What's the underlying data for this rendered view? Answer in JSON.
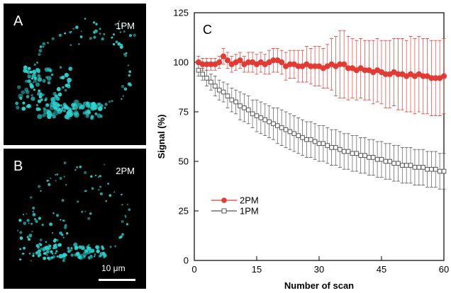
{
  "panels": {
    "a": {
      "letter": "A",
      "tag": "1PM"
    },
    "b": {
      "letter": "B",
      "tag": "2PM",
      "scale_bar_label": "10 μm"
    }
  },
  "colors": {
    "dot": "#2fd3d0",
    "series_2pm": "#e23b35",
    "series_1pm": "#555555"
  },
  "chart_data": {
    "type": "line",
    "panel_label": "C",
    "xlabel": "Number of scan",
    "ylabel": "Signal (%)",
    "xlim": [
      0,
      60
    ],
    "ylim": [
      0,
      125
    ],
    "x_ticks": [
      0,
      15,
      30,
      45,
      60
    ],
    "y_ticks": [
      0,
      25,
      50,
      75,
      100,
      125
    ],
    "legend_position": "lower-left",
    "series": [
      {
        "name": "2PM",
        "marker": "filled-circle",
        "x": [
          1,
          2,
          3,
          4,
          5,
          6,
          7,
          8,
          9,
          10,
          11,
          12,
          13,
          14,
          15,
          16,
          17,
          18,
          19,
          20,
          21,
          22,
          23,
          24,
          25,
          26,
          27,
          28,
          29,
          30,
          31,
          32,
          33,
          34,
          35,
          36,
          37,
          38,
          39,
          40,
          41,
          42,
          43,
          44,
          45,
          46,
          47,
          48,
          49,
          50,
          51,
          52,
          53,
          54,
          55,
          56,
          57,
          58,
          59,
          60
        ],
        "y": [
          100,
          99,
          99,
          99,
          99,
          100,
          103,
          101,
          99,
          100,
          101,
          99,
          100,
          100,
          99,
          100,
          99,
          100,
          101,
          101,
          100,
          98,
          99,
          99,
          98,
          98,
          99,
          98,
          98,
          98,
          97,
          98,
          99,
          98,
          99,
          99,
          97,
          97,
          96,
          97,
          96,
          96,
          95,
          96,
          95,
          94,
          94,
          95,
          94,
          94,
          93,
          94,
          93,
          94,
          93,
          93,
          92,
          92,
          92,
          93
        ],
        "error": [
          3,
          3,
          3,
          3,
          3,
          3,
          4,
          4,
          4,
          4,
          4,
          4,
          5,
          5,
          5,
          5,
          5,
          6,
          6,
          6,
          6,
          7,
          7,
          7,
          8,
          8,
          9,
          9,
          10,
          10,
          10,
          11,
          13,
          15,
          17,
          17,
          16,
          15,
          15,
          15,
          15,
          15,
          16,
          16,
          16,
          17,
          17,
          17,
          18,
          18,
          18,
          19,
          19,
          19,
          19,
          19,
          19,
          19,
          19,
          19
        ]
      },
      {
        "name": "1PM",
        "marker": "open-square",
        "x": [
          1,
          2,
          3,
          4,
          5,
          6,
          7,
          8,
          9,
          10,
          11,
          12,
          13,
          14,
          15,
          16,
          17,
          18,
          19,
          20,
          21,
          22,
          23,
          24,
          25,
          26,
          27,
          28,
          29,
          30,
          31,
          32,
          33,
          34,
          35,
          36,
          37,
          38,
          39,
          40,
          41,
          42,
          43,
          44,
          45,
          46,
          47,
          48,
          49,
          50,
          51,
          52,
          53,
          54,
          55,
          56,
          57,
          58,
          59,
          60
        ],
        "y": [
          96,
          94,
          92,
          90,
          88,
          86,
          85,
          83,
          81,
          80,
          78,
          77,
          76,
          74,
          73,
          72,
          71,
          70,
          69,
          68,
          67,
          66,
          65,
          64,
          63,
          62,
          61,
          61,
          60,
          59,
          59,
          58,
          57,
          57,
          56,
          55,
          55,
          54,
          54,
          53,
          53,
          52,
          52,
          51,
          51,
          50,
          50,
          49,
          49,
          48,
          48,
          48,
          47,
          47,
          47,
          46,
          46,
          46,
          45,
          45
        ],
        "error": [
          3,
          3,
          4,
          4,
          5,
          5,
          5,
          6,
          6,
          6,
          7,
          7,
          7,
          7,
          8,
          8,
          8,
          8,
          8,
          9,
          9,
          9,
          9,
          9,
          9,
          9,
          9,
          9,
          9,
          9,
          9,
          9,
          9,
          9,
          9,
          9,
          9,
          9,
          9,
          9,
          9,
          9,
          9,
          9,
          9,
          9,
          9,
          9,
          9,
          9,
          9,
          9,
          9,
          9,
          9,
          9,
          9,
          9,
          9,
          9
        ]
      }
    ]
  }
}
